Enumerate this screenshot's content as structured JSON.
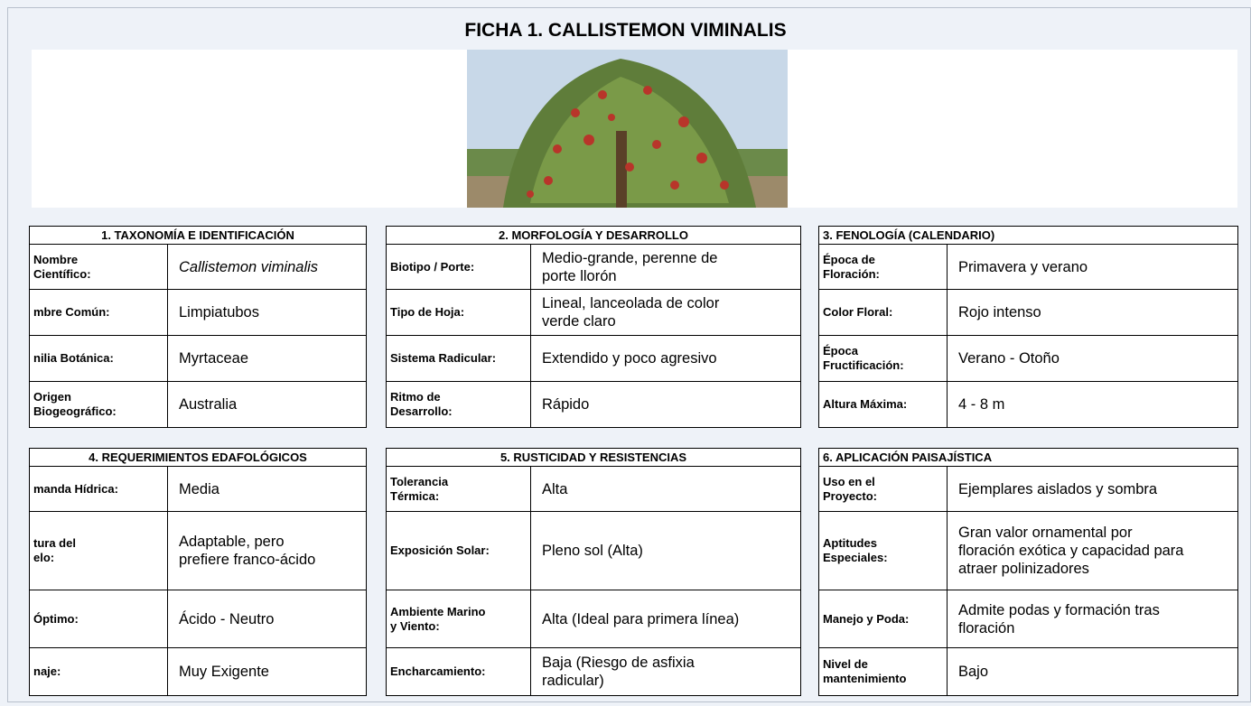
{
  "title": "FICHA 1. CALLISTEMON VIMINALIS",
  "tables": [
    {
      "title": "1. TAXONOMÍA E IDENTIFICACIÓN",
      "rows": [
        [
          "Nombre\nCientífico:",
          "Callistemon viminalis"
        ],
        [
          "mbre Común:",
          "Limpiatubos"
        ],
        [
          "nilia Botánica:",
          "Myrtaceae"
        ],
        [
          "Origen\nBiogeográfico:",
          "Australia"
        ]
      ]
    },
    {
      "title": "2. MORFOLOGÍA Y DESARROLLO",
      "rows": [
        [
          "Biotipo / Porte:",
          "Medio-grande, perenne de\nporte llorón"
        ],
        [
          "Tipo de Hoja:",
          "Lineal, lanceolada de color\nverde claro"
        ],
        [
          "Sistema Radicular:",
          "Extendido y poco agresivo"
        ],
        [
          "Ritmo de\nDesarrollo:",
          "Rápido"
        ]
      ]
    },
    {
      "title": "3. FENOLOGÍA (CALENDARIO)",
      "rows": [
        [
          "Época de\nFloración:",
          "Primavera y verano"
        ],
        [
          "Color Floral:",
          "Rojo intenso"
        ],
        [
          "Época\nFructificación:",
          "Verano - Otoño"
        ],
        [
          "Altura Máxima:",
          "4 - 8 m"
        ]
      ]
    },
    {
      "title": "4. REQUERIMIENTOS EDAFOLÓGICOS",
      "rows": [
        [
          "manda Hídrica:",
          "Media"
        ],
        [
          "tura del\nelo:",
          "Adaptable, pero\nprefiere franco-ácido"
        ],
        [
          "Óptimo:",
          "Ácido  - Neutro"
        ],
        [
          "naje:",
          "Muy Exigente"
        ]
      ]
    },
    {
      "title": "5. RUSTICIDAD Y RESISTENCIAS",
      "rows": [
        [
          "Tolerancia\nTérmica:",
          "Alta"
        ],
        [
          "Exposición Solar:",
          "Pleno sol (Alta)"
        ],
        [
          "Ambiente Marino\ny Viento:",
          "Alta (Ideal para primera línea)"
        ],
        [
          "Encharcamiento:",
          "Baja (Riesgo de asfixia\nradicular)"
        ]
      ]
    },
    {
      "title": "6. APLICACIÓN PAISAJÍSTICA",
      "rows": [
        [
          "Uso en el\nProyecto:",
          "Ejemplares aislados y sombra"
        ],
        [
          "Aptitudes\nEspeciales:",
          "Gran valor ornamental por\nfloración exótica y capacidad para\natraer polinizadores"
        ],
        [
          "Manejo y Poda:",
          "Admite podas y formación tras\nfloración"
        ],
        [
          "Nivel de\nmantenimiento",
          "Bajo"
        ]
      ]
    }
  ]
}
